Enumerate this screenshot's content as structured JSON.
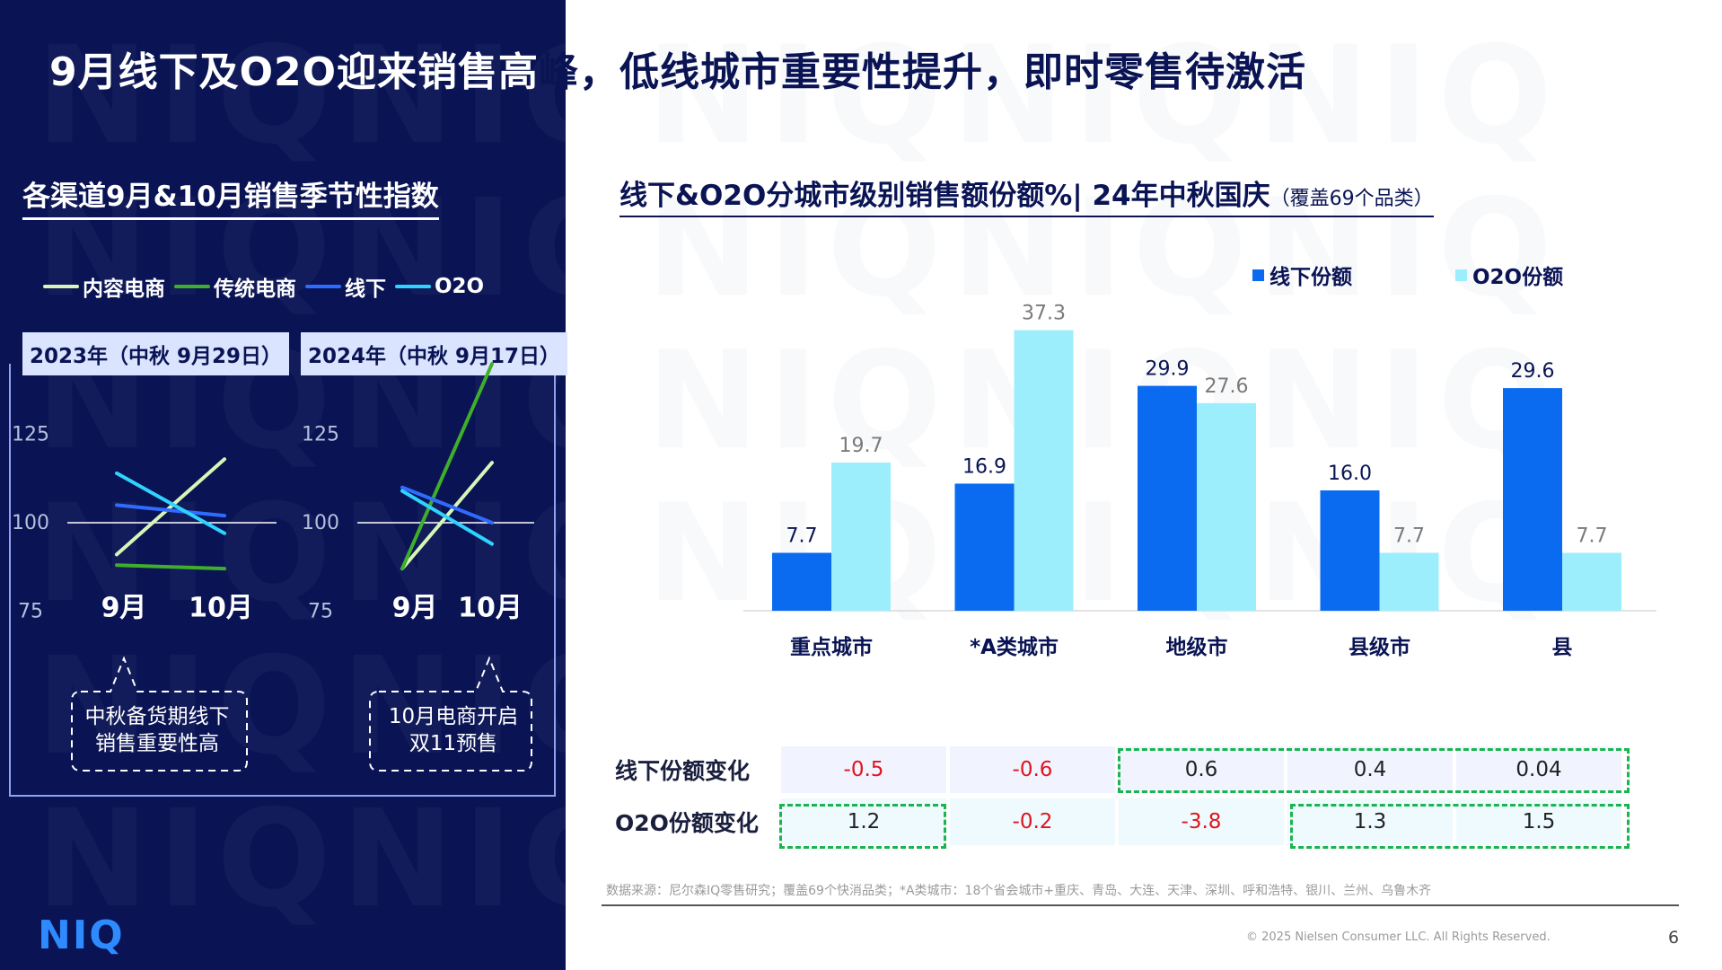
{
  "title": {
    "white_part": "9月线下及O2O迎来销售高",
    "dark_part": "峰，低线城市重要性提升，即时零售待激活"
  },
  "watermark": "NIQ",
  "left_section": {
    "heading": "各渠道9月&10月销售季节性指数",
    "legend": [
      {
        "name": "内容电商",
        "color": "#d8f5b8"
      },
      {
        "name": "传统电商",
        "color": "#3fae2a"
      },
      {
        "name": "线下",
        "color": "#2f6bff"
      },
      {
        "name": "O2O",
        "color": "#2ed3ff"
      }
    ],
    "year_labels": [
      "2023年（中秋 9月29日）",
      "2024年（中秋 9月17日）"
    ],
    "callouts": [
      {
        "line1": "中秋备货期线下",
        "line2": "销售重要性高"
      },
      {
        "line1": "10月电商开启",
        "line2": "双11预售"
      }
    ]
  },
  "right_section": {
    "heading_main": "线下&O2O分城市级别销售额份额%| 24年中秋国庆",
    "heading_sub": "（覆盖69个品类）",
    "legend": [
      {
        "name": "线下份额",
        "color": "#0b6bf0"
      },
      {
        "name": "O2O份额",
        "color": "#9deefd"
      }
    ]
  },
  "chart_data": [
    {
      "type": "line",
      "title": "2023年（中秋 9月29日）",
      "categories": [
        "9月",
        "10月"
      ],
      "yticks": [
        75,
        100,
        125
      ],
      "ylim": [
        70,
        145
      ],
      "reference_line": 100,
      "series": [
        {
          "name": "内容电商",
          "values": [
            91,
            118
          ]
        },
        {
          "name": "传统电商",
          "values": [
            88,
            87
          ]
        },
        {
          "name": "线下",
          "values": [
            105,
            102
          ]
        },
        {
          "name": "O2O",
          "values": [
            114,
            97
          ]
        }
      ]
    },
    {
      "type": "line",
      "title": "2024年（中秋 9月17日）",
      "categories": [
        "9月",
        "10月"
      ],
      "yticks": [
        75,
        100,
        125
      ],
      "ylim": [
        70,
        145
      ],
      "reference_line": 100,
      "series": [
        {
          "name": "内容电商",
          "values": [
            87,
            117
          ]
        },
        {
          "name": "传统电商",
          "values": [
            87,
            145
          ]
        },
        {
          "name": "线下",
          "values": [
            110,
            100
          ]
        },
        {
          "name": "O2O",
          "values": [
            109,
            94
          ]
        }
      ]
    },
    {
      "type": "bar",
      "title": "线下&O2O分城市级别销售额份额%| 24年中秋国庆",
      "categories": [
        "重点城市",
        "*A类城市",
        "地级市",
        "县级市",
        "县"
      ],
      "ylim": [
        0,
        40
      ],
      "series": [
        {
          "name": "线下份额",
          "color": "#0b6bf0",
          "values": [
            7.7,
            16.9,
            29.9,
            16.0,
            29.6
          ]
        },
        {
          "name": "O2O份额",
          "color": "#9deefd",
          "values": [
            19.7,
            37.3,
            27.6,
            7.7,
            7.7
          ]
        }
      ]
    }
  ],
  "change_table": {
    "rows": [
      {
        "label": "线下份额变化",
        "values": [
          "-0.5",
          "-0.6",
          "0.6",
          "0.4",
          "0.04"
        ]
      },
      {
        "label": "O2O份额变化",
        "values": [
          "1.2",
          "-0.2",
          "-3.8",
          "1.3",
          "1.5"
        ]
      }
    ]
  },
  "footnote": "数据来源：尼尔森IQ零售研究；覆盖69个快消品类；*A类城市：18个省会城市+重庆、青岛、大连、天津、深圳、呼和浩特、银川、兰州、乌鲁木齐",
  "copyright": "© 2025 Nielsen Consumer LLC. All Rights Reserved.",
  "page_number": "6",
  "logo_text": "NIQ"
}
